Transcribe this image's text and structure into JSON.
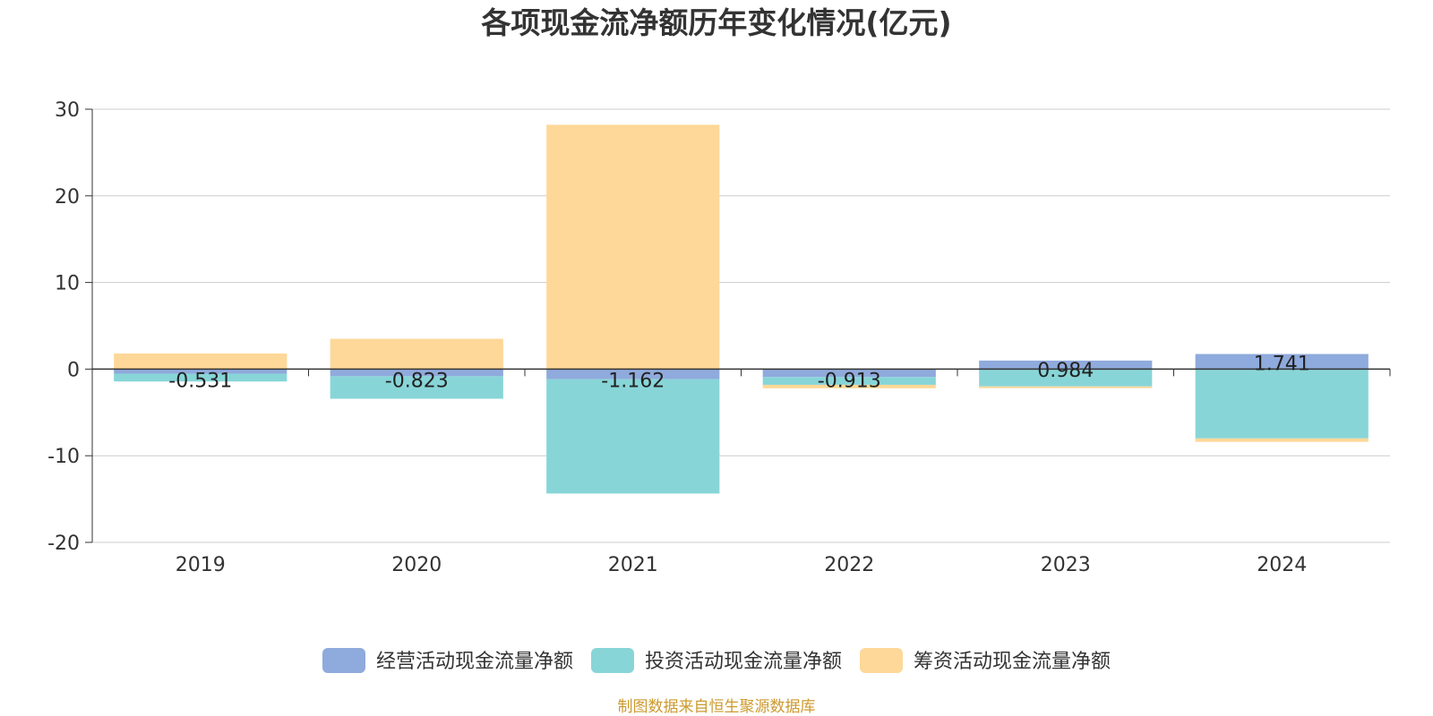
{
  "chart_data": {
    "type": "bar",
    "stacked": true,
    "title": "各项现金流净额历年变化情况(亿元)",
    "categories": [
      "2019",
      "2020",
      "2021",
      "2022",
      "2023",
      "2024"
    ],
    "ylim": [
      -20,
      30
    ],
    "yticks": [
      -20,
      -10,
      0,
      10,
      20,
      30
    ],
    "grid": true,
    "legend_position": "bottom",
    "series": [
      {
        "name": "经营活动现金流量净额",
        "color": "#8faadc",
        "values": [
          -0.531,
          -0.823,
          -1.162,
          -0.913,
          0.984,
          1.741
        ],
        "labels": [
          "-0.531",
          "-0.823",
          "-1.162",
          "-0.913",
          "0.984",
          "1.741"
        ]
      },
      {
        "name": "投资活动现金流量净额",
        "color": "#88d5d8",
        "values": [
          -0.9,
          -2.6,
          -13.2,
          -0.9,
          -2.0,
          -8.0
        ]
      },
      {
        "name": "筹资活动现金流量净额",
        "color": "#fed898",
        "values": [
          1.8,
          3.5,
          28.2,
          -0.4,
          -0.2,
          -0.4
        ]
      }
    ]
  },
  "source_note": "制图数据来自恒生聚源数据库"
}
